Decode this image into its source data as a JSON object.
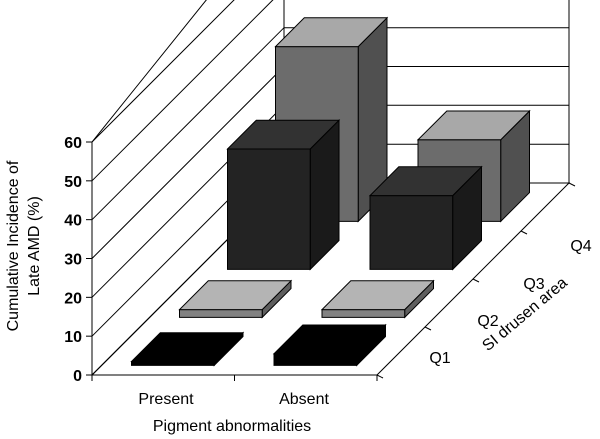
{
  "chart_data": {
    "type": "bar",
    "title": "",
    "xlabel": "Pigment abnormalities",
    "ylabel_lines": [
      "Cumulative Incidence of",
      "Late AMD (%)"
    ],
    "zlabel": "SI drusen area",
    "categories": [
      "Present",
      "Absent"
    ],
    "yticks": [
      "0",
      "10",
      "20",
      "30",
      "40",
      "50",
      "60"
    ],
    "ylim": [
      0,
      60
    ],
    "series": [
      {
        "name": "Q1",
        "values": [
          1,
          3
        ]
      },
      {
        "name": "Q2",
        "values": [
          2,
          2
        ]
      },
      {
        "name": "Q3",
        "values": [
          31,
          19
        ]
      },
      {
        "name": "Q4",
        "values": [
          45,
          21
        ]
      }
    ],
    "grid": true,
    "colors": {
      "Q1": [
        "#000000",
        "#000000",
        "#000000"
      ],
      "Q2": [
        "#b4b4b4",
        "#828282",
        "#5e5e5e"
      ],
      "Q3": [
        "#323232",
        "#232323",
        "#1a1a1a"
      ],
      "Q4": [
        "#a8a8a8",
        "#6c6c6c",
        "#505050"
      ]
    }
  }
}
